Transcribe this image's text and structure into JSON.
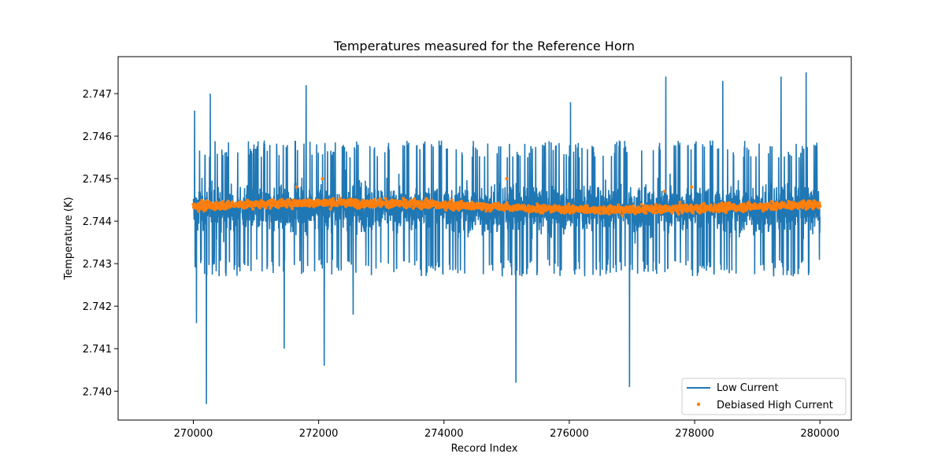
{
  "chart_data": {
    "type": "line",
    "title": "Temperatures measured for the Reference Horn",
    "xlabel": "Record Index",
    "ylabel": "Temperature (K)",
    "xlim": [
      268800,
      280500
    ],
    "ylim": [
      2.73932,
      2.74787
    ],
    "x_ticks": [
      270000,
      272000,
      274000,
      276000,
      278000,
      280000
    ],
    "x_tick_labels": [
      "270000",
      "272000",
      "274000",
      "276000",
      "278000",
      "280000"
    ],
    "y_ticks": [
      2.74,
      2.741,
      2.742,
      2.743,
      2.744,
      2.745,
      2.746,
      2.747
    ],
    "y_tick_labels": [
      "2.740",
      "2.741",
      "2.742",
      "2.743",
      "2.744",
      "2.745",
      "2.746",
      "2.747"
    ],
    "legend_position": "lower-right",
    "series": [
      {
        "name": "Low Current",
        "style": "line",
        "color": "#1f77b4",
        "x_range": [
          270000,
          280000
        ],
        "mean": 2.7443,
        "typical_min": 2.7427,
        "typical_max": 2.7459,
        "spikes": [
          {
            "x": 270020,
            "y": 2.7466
          },
          {
            "x": 270050,
            "y": 2.7416
          },
          {
            "x": 270210,
            "y": 2.7397
          },
          {
            "x": 270270,
            "y": 2.747
          },
          {
            "x": 271450,
            "y": 2.741
          },
          {
            "x": 271800,
            "y": 2.7472
          },
          {
            "x": 272090,
            "y": 2.7406
          },
          {
            "x": 272550,
            "y": 2.7418
          },
          {
            "x": 275150,
            "y": 2.7402
          },
          {
            "x": 276020,
            "y": 2.7468
          },
          {
            "x": 276960,
            "y": 2.7401
          },
          {
            "x": 277540,
            "y": 2.7474
          },
          {
            "x": 278450,
            "y": 2.7473
          },
          {
            "x": 279380,
            "y": 2.7474
          },
          {
            "x": 279780,
            "y": 2.7475
          }
        ]
      },
      {
        "name": "Debiased High Current",
        "style": "scatter",
        "color": "#ff7f0e",
        "x_range": [
          270000,
          280000
        ],
        "mean": 2.74435,
        "spread": 0.00012,
        "outliers": [
          {
            "x": 271650,
            "y": 2.7448
          },
          {
            "x": 272060,
            "y": 2.745
          },
          {
            "x": 275000,
            "y": 2.745
          },
          {
            "x": 277520,
            "y": 2.7447
          },
          {
            "x": 277950,
            "y": 2.7448
          }
        ]
      }
    ]
  }
}
